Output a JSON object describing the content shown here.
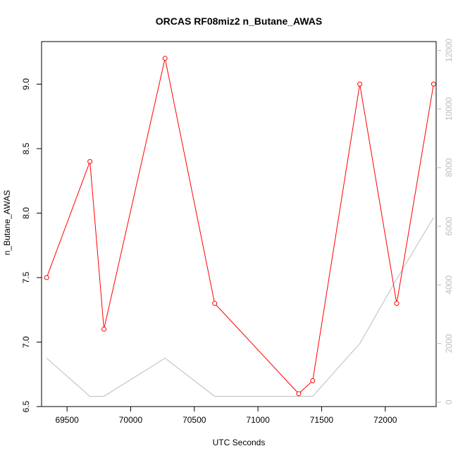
{
  "chart_data": {
    "type": "line",
    "title": "ORCAS RF08miz2 n_Butane_AWAS",
    "xlabel": "UTC Seconds",
    "ylabel": "n_Butane_AWAS",
    "xlim": [
      69300,
      72400
    ],
    "ylim": [
      6.5,
      9.33
    ],
    "y2lim": [
      -150,
      12300
    ],
    "x_ticks": [
      69500,
      70000,
      70500,
      71000,
      71500,
      72000
    ],
    "y_ticks": [
      6.5,
      7.0,
      7.5,
      8.0,
      8.5,
      9.0
    ],
    "y2_ticks": [
      0,
      2000,
      4000,
      6000,
      8000,
      10000,
      12000
    ],
    "grid": false,
    "series": [
      {
        "axis": "left",
        "color": "#ff0000",
        "marker": "open-circle",
        "x": [
          69340,
          69680,
          69790,
          70270,
          70660,
          71320,
          71430,
          71800,
          72090,
          72380
        ],
        "values": [
          7.5,
          8.4,
          7.1,
          9.2,
          7.3,
          6.6,
          6.7,
          9.0,
          7.3,
          9.0
        ]
      },
      {
        "axis": "right",
        "color": "#bdbdbd",
        "marker": "none",
        "x": [
          69340,
          69680,
          69790,
          70270,
          70660,
          71320,
          71430,
          71800,
          72090,
          72380
        ],
        "values": [
          1500,
          200,
          200,
          1500,
          200,
          200,
          200,
          2000,
          4200,
          6300
        ]
      }
    ]
  }
}
